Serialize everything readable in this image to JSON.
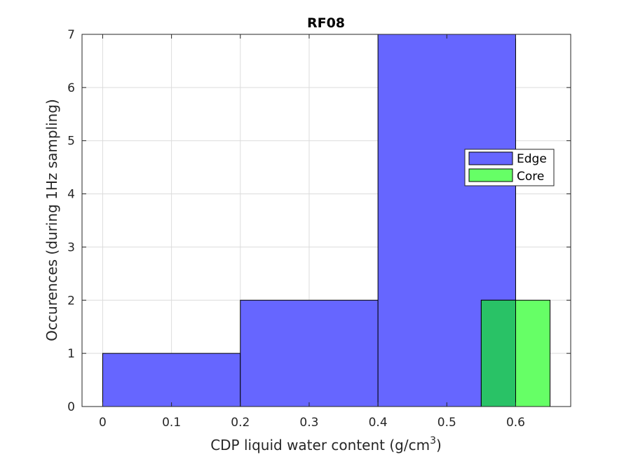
{
  "chart_data": {
    "type": "bar",
    "title": "RF08",
    "xlabel_prefix": "CDP liquid water content (g/cm",
    "xlabel_sup": "3",
    "xlabel_suffix": ")",
    "ylabel": "Occurences (during 1Hz sampling)",
    "xlim": [
      -0.03,
      0.68
    ],
    "ylim": [
      0,
      7
    ],
    "xticks": [
      0,
      0.1,
      0.2,
      0.3,
      0.4,
      0.5,
      0.6
    ],
    "xtick_labels": [
      "0",
      "0.1",
      "0.2",
      "0.3",
      "0.4",
      "0.5",
      "0.6"
    ],
    "yticks": [
      0,
      1,
      2,
      3,
      4,
      5,
      6,
      7
    ],
    "ytick_labels": [
      "0",
      "1",
      "2",
      "3",
      "4",
      "5",
      "6",
      "7"
    ],
    "grid": true,
    "legend_position": "right",
    "series": [
      {
        "name": "Edge",
        "color": "#6666ff",
        "bins": [
          {
            "x0": 0.0,
            "x1": 0.2,
            "count": 1
          },
          {
            "x0": 0.2,
            "x1": 0.4,
            "count": 2
          },
          {
            "x0": 0.4,
            "x1": 0.6,
            "count": 7
          }
        ]
      },
      {
        "name": "Core",
        "color": "#66ff66",
        "bins": [
          {
            "x0": 0.55,
            "x1": 0.6,
            "count": 2
          },
          {
            "x0": 0.6,
            "x1": 0.65,
            "count": 2
          }
        ]
      }
    ],
    "overlap_color": "#29c266"
  }
}
